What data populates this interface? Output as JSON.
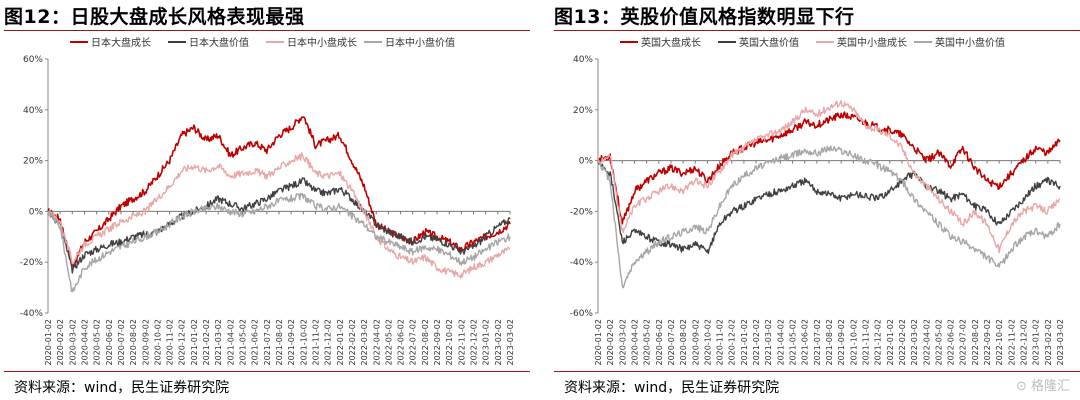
{
  "panels": [
    {
      "title": "图12：日股大盘成长风格表现最强",
      "source": "资料来源：wind，民生证券研究院",
      "chart_data": {
        "type": "line",
        "x_tick_labels": [
          "2020-01-02",
          "2020-02-02",
          "2020-03-02",
          "2020-04-02",
          "2020-05-02",
          "2020-06-02",
          "2020-07-02",
          "2020-08-02",
          "2020-09-02",
          "2020-10-02",
          "2020-11-02",
          "2020-12-02",
          "2021-01-02",
          "2021-02-02",
          "2021-03-02",
          "2021-04-02",
          "2021-05-02",
          "2021-06-02",
          "2021-07-02",
          "2021-08-02",
          "2021-09-02",
          "2021-10-02",
          "2021-11-02",
          "2021-12-02",
          "2022-01-02",
          "2022-02-02",
          "2022-03-02",
          "2022-04-02",
          "2022-05-02",
          "2022-06-02",
          "2022-07-02",
          "2022-08-02",
          "2022-09-02",
          "2022-10-02",
          "2022-11-02",
          "2022-12-02",
          "2023-01-02",
          "2023-02-02",
          "2023-03-02"
        ],
        "y_tick_labels": [
          "60%",
          "40%",
          "20%",
          "0%",
          "-20%",
          "-40%"
        ],
        "ylim": [
          -40,
          60
        ],
        "y_ticks": [
          60,
          40,
          20,
          0,
          -20,
          -40
        ],
        "legend_position": "top",
        "series": [
          {
            "name": "日本大盘成长",
            "color": "#c00000",
            "width": 1.6,
            "values": [
              0,
              -3,
              -22,
              -12,
              -8,
              -3,
              2,
              5,
              8,
              14,
              20,
              30,
              33,
              28,
              30,
              22,
              25,
              27,
              24,
              30,
              33,
              38,
              26,
              28,
              30,
              20,
              10,
              -5,
              -8,
              -10,
              -12,
              -8,
              -10,
              -12,
              -15,
              -12,
              -10,
              -8,
              -5
            ]
          },
          {
            "name": "日本大盘价值",
            "color": "#404040",
            "width": 1.4,
            "values": [
              0,
              -5,
              -23,
              -17,
              -15,
              -13,
              -12,
              -10,
              -9,
              -8,
              -5,
              -2,
              0,
              2,
              5,
              3,
              1,
              3,
              5,
              8,
              10,
              12,
              8,
              7,
              9,
              5,
              0,
              -5,
              -8,
              -10,
              -12,
              -10,
              -11,
              -13,
              -16,
              -14,
              -10,
              -6,
              -3
            ]
          },
          {
            "name": "日本中小盘成长",
            "color": "#e8a8a8",
            "width": 1.4,
            "values": [
              0,
              -4,
              -20,
              -13,
              -10,
              -7,
              -4,
              -2,
              0,
              5,
              10,
              16,
              18,
              16,
              18,
              14,
              15,
              16,
              14,
              17,
              20,
              22,
              15,
              14,
              15,
              8,
              0,
              -10,
              -15,
              -18,
              -20,
              -18,
              -22,
              -24,
              -25,
              -22,
              -20,
              -17,
              -15
            ]
          },
          {
            "name": "日本中小盘价值",
            "color": "#a6a6a6",
            "width": 1.4,
            "values": [
              0,
              -6,
              -32,
              -22,
              -19,
              -16,
              -14,
              -12,
              -10,
              -8,
              -5,
              -2,
              0,
              1,
              2,
              0,
              -1,
              0,
              2,
              4,
              5,
              6,
              2,
              1,
              2,
              -2,
              -5,
              -10,
              -12,
              -14,
              -16,
              -14,
              -15,
              -17,
              -20,
              -18,
              -15,
              -12,
              -10
            ]
          }
        ]
      }
    },
    {
      "title": "图13：英股价值风格指数明显下行",
      "source": "资料来源：wind，民生证券研究院",
      "chart_data": {
        "type": "line",
        "x_tick_labels": [
          "2020-01-02",
          "2020-02-02",
          "2020-03-02",
          "2020-04-02",
          "2020-05-02",
          "2020-06-02",
          "2020-07-02",
          "2020-08-02",
          "2020-09-02",
          "2020-10-02",
          "2020-11-02",
          "2020-12-02",
          "2021-01-02",
          "2021-02-02",
          "2021-03-02",
          "2021-04-02",
          "2021-05-02",
          "2021-06-02",
          "2021-07-02",
          "2021-08-02",
          "2021-09-02",
          "2021-10-02",
          "2021-11-02",
          "2021-12-02",
          "2022-01-02",
          "2022-02-02",
          "2022-03-02",
          "2022-04-02",
          "2022-05-02",
          "2022-06-02",
          "2022-07-02",
          "2022-08-02",
          "2022-09-02",
          "2022-10-02",
          "2022-11-02",
          "2022-12-02",
          "2023-01-02",
          "2023-02-02",
          "2023-03-02"
        ],
        "y_tick_labels": [
          "40%",
          "20%",
          "0%",
          "-20%",
          "-40%",
          "-60%"
        ],
        "ylim": [
          -60,
          40
        ],
        "y_ticks": [
          40,
          20,
          0,
          -20,
          -40,
          -60
        ],
        "legend_position": "top",
        "series": [
          {
            "name": "英国大盘成长",
            "color": "#c00000",
            "width": 1.6,
            "values": [
              0,
              2,
              -25,
              -12,
              -8,
              -5,
              -3,
              -5,
              -3,
              -8,
              -2,
              3,
              5,
              7,
              8,
              10,
              12,
              15,
              14,
              16,
              18,
              17,
              15,
              13,
              12,
              10,
              5,
              0,
              3,
              -2,
              5,
              -3,
              -8,
              -10,
              -5,
              0,
              5,
              3,
              8
            ]
          },
          {
            "name": "英国大盘价值",
            "color": "#404040",
            "width": 1.4,
            "values": [
              0,
              -5,
              -32,
              -28,
              -30,
              -32,
              -33,
              -35,
              -33,
              -36,
              -25,
              -20,
              -18,
              -15,
              -13,
              -12,
              -10,
              -8,
              -12,
              -13,
              -15,
              -13,
              -14,
              -15,
              -12,
              -8,
              -5,
              -10,
              -12,
              -15,
              -13,
              -18,
              -20,
              -25,
              -20,
              -15,
              -10,
              -8,
              -10
            ]
          },
          {
            "name": "英国中小盘成长",
            "color": "#e8a8a8",
            "width": 1.4,
            "values": [
              0,
              2,
              -28,
              -18,
              -15,
              -12,
              -10,
              -12,
              -8,
              -10,
              -4,
              2,
              5,
              8,
              10,
              12,
              15,
              20,
              18,
              21,
              23,
              20,
              14,
              12,
              10,
              5,
              -5,
              -10,
              -15,
              -20,
              -25,
              -20,
              -25,
              -35,
              -25,
              -20,
              -18,
              -20,
              -15
            ]
          },
          {
            "name": "英国中小盘价值",
            "color": "#a6a6a6",
            "width": 1.4,
            "values": [
              0,
              -8,
              -50,
              -40,
              -36,
              -32,
              -30,
              -28,
              -26,
              -28,
              -18,
              -10,
              -6,
              -3,
              -1,
              1,
              2,
              4,
              3,
              5,
              4,
              2,
              0,
              -2,
              -4,
              -8,
              -15,
              -20,
              -25,
              -30,
              -32,
              -35,
              -38,
              -42,
              -35,
              -30,
              -28,
              -30,
              -25
            ]
          }
        ]
      }
    }
  ],
  "watermark": "格隆汇"
}
